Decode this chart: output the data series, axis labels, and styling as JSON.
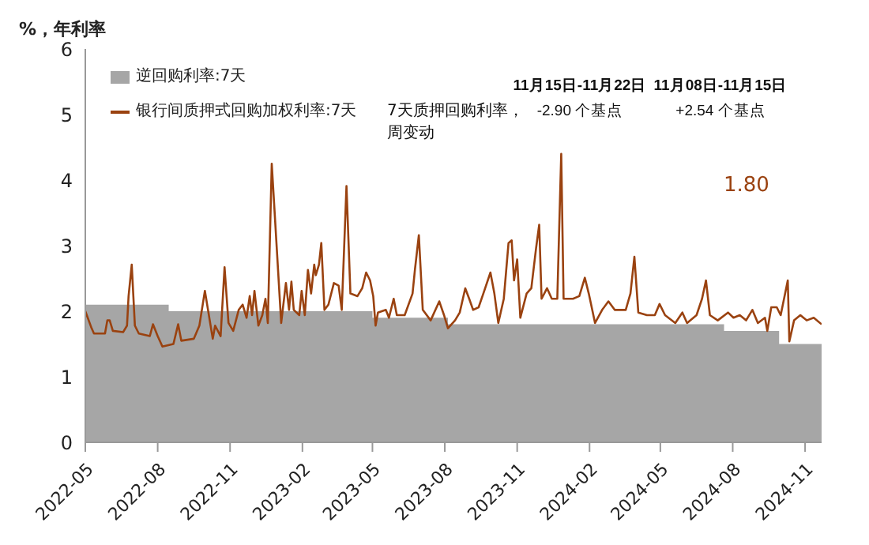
{
  "chart_data": {
    "type": "line",
    "xlim": [
      "2022-05-01",
      "2024-11-22"
    ],
    "xticks": [
      "2022-05",
      "2022-08",
      "2022-11",
      "2023-02",
      "2023-05",
      "2023-08",
      "2023-11",
      "2024-02",
      "2024-05",
      "2024-08",
      "2024-11"
    ],
    "ylim": [
      0,
      6
    ],
    "yticks": [
      0,
      1,
      2,
      3,
      4,
      5,
      6
    ],
    "grid": false,
    "legend": "top left",
    "marker": "none",
    "line_style": "solid",
    "annotations": [
      "%，年利率",
      "7天质押回购利率，周变动",
      "11月15日-11月22日",
      "-2.90 个基点",
      "11月08日-11月15日",
      "+2.54 个基点",
      "1.80"
    ],
    "series": [
      {
        "name": "逆回购利率:7天",
        "type": "area",
        "color": "#a6a6a6",
        "x": [
          "2022-05-01",
          "2022-08-15",
          "2022-08-15",
          "2023-05-01",
          "2023-05-01",
          "2023-08-05",
          "2023-08-05",
          "2024-07-21",
          "2024-07-21",
          "2024-09-29",
          "2024-09-29",
          "2024-11-22"
        ],
        "values": [
          2.1,
          2.1,
          2.0,
          2.0,
          1.9,
          1.9,
          1.8,
          1.8,
          1.7,
          1.7,
          1.5,
          1.5
        ]
      },
      {
        "name": "银行间质押式回购加权利率:7天",
        "color": "#9a4210",
        "x": [
          "2022-05-01",
          "2022-05-09",
          "2022-05-12",
          "2022-05-26",
          "2022-05-29",
          "2022-06-01",
          "2022-06-05",
          "2022-06-18",
          "2022-06-23",
          "2022-06-25",
          "2022-06-29",
          "2022-07-03",
          "2022-07-08",
          "2022-07-22",
          "2022-07-26",
          "2022-08-01",
          "2022-08-07",
          "2022-08-21",
          "2022-08-27",
          "2022-08-31",
          "2022-09-16",
          "2022-09-23",
          "2022-09-30",
          "2022-10-10",
          "2022-10-13",
          "2022-10-20",
          "2022-10-25",
          "2022-10-30",
          "2022-11-05",
          "2022-11-12",
          "2022-11-17",
          "2022-11-22",
          "2022-11-26",
          "2022-11-29",
          "2022-12-02",
          "2022-12-07",
          "2022-12-12",
          "2022-12-16",
          "2022-12-19",
          "2022-12-24",
          "2023-01-05",
          "2023-01-11",
          "2023-01-15",
          "2023-01-18",
          "2023-01-21",
          "2023-01-28",
          "2023-01-31",
          "2023-02-04",
          "2023-02-08",
          "2023-02-12",
          "2023-02-16",
          "2023-02-18",
          "2023-02-22",
          "2023-02-25",
          "2023-03-01",
          "2023-03-06",
          "2023-03-13",
          "2023-03-19",
          "2023-03-23",
          "2023-03-26",
          "2023-03-29",
          "2023-04-03",
          "2023-04-12",
          "2023-04-18",
          "2023-04-23",
          "2023-04-28",
          "2023-05-02",
          "2023-05-05",
          "2023-05-08",
          "2023-05-18",
          "2023-05-22",
          "2023-05-28",
          "2023-06-01",
          "2023-06-11",
          "2023-06-21",
          "2023-06-24",
          "2023-06-29",
          "2023-07-04",
          "2023-07-14",
          "2023-07-25",
          "2023-07-31",
          "2023-08-05",
          "2023-08-14",
          "2023-08-20",
          "2023-08-27",
          "2023-09-01",
          "2023-09-06",
          "2023-09-13",
          "2023-09-19",
          "2023-09-28",
          "2023-10-03",
          "2023-10-08",
          "2023-10-15",
          "2023-10-21",
          "2023-10-25",
          "2023-10-28",
          "2023-11-01",
          "2023-11-05",
          "2023-11-13",
          "2023-11-19",
          "2023-11-25",
          "2023-11-29",
          "2023-12-02",
          "2023-12-09",
          "2023-12-15",
          "2023-12-22",
          "2023-12-27",
          "2023-12-30",
          "2024-01-11",
          "2024-01-19",
          "2024-01-26",
          "2024-01-31",
          "2024-02-08",
          "2024-02-17",
          "2024-02-25",
          "2024-03-04",
          "2024-03-18",
          "2024-03-24",
          "2024-03-29",
          "2024-04-03",
          "2024-04-14",
          "2024-04-24",
          "2024-04-30",
          "2024-05-07",
          "2024-05-20",
          "2024-05-29",
          "2024-06-04",
          "2024-06-16",
          "2024-06-23",
          "2024-06-28",
          "2024-07-03",
          "2024-07-13",
          "2024-07-26",
          "2024-08-02",
          "2024-08-10",
          "2024-08-18",
          "2024-08-26",
          "2024-09-02",
          "2024-09-11",
          "2024-09-14",
          "2024-09-19",
          "2024-09-26",
          "2024-10-01",
          "2024-10-10",
          "2024-10-12",
          "2024-10-18",
          "2024-10-26",
          "2024-11-03",
          "2024-11-12",
          "2024-11-22"
        ],
        "values": [
          2.0,
          1.74,
          1.66,
          1.66,
          1.86,
          1.86,
          1.7,
          1.68,
          1.78,
          2.23,
          2.71,
          1.78,
          1.66,
          1.62,
          1.8,
          1.62,
          1.46,
          1.5,
          1.8,
          1.55,
          1.58,
          1.78,
          2.31,
          1.58,
          1.78,
          1.62,
          2.67,
          1.82,
          1.7,
          2.02,
          2.1,
          1.9,
          2.23,
          1.94,
          2.31,
          1.78,
          1.94,
          2.19,
          1.82,
          4.25,
          1.82,
          2.43,
          2.02,
          2.45,
          2.02,
          1.94,
          2.31,
          1.94,
          2.63,
          2.27,
          2.71,
          2.55,
          2.71,
          3.04,
          2.02,
          2.1,
          2.43,
          2.39,
          2.02,
          2.96,
          3.91,
          2.27,
          2.23,
          2.35,
          2.59,
          2.47,
          2.23,
          1.78,
          1.98,
          2.02,
          1.9,
          2.19,
          1.94,
          1.94,
          2.27,
          2.63,
          3.16,
          2.02,
          1.86,
          2.15,
          1.94,
          1.74,
          1.86,
          1.98,
          2.35,
          2.19,
          2.02,
          2.06,
          2.27,
          2.59,
          2.27,
          1.82,
          2.19,
          3.04,
          3.08,
          2.47,
          2.79,
          1.9,
          2.27,
          2.35,
          2.96,
          3.32,
          2.19,
          2.35,
          2.19,
          2.19,
          4.4,
          2.19,
          2.19,
          2.23,
          2.51,
          2.27,
          1.82,
          2.02,
          2.15,
          2.02,
          2.02,
          2.27,
          2.83,
          1.98,
          1.94,
          1.94,
          2.11,
          1.94,
          1.82,
          1.98,
          1.82,
          1.94,
          2.19,
          2.47,
          1.94,
          1.86,
          1.98,
          1.9,
          1.94,
          1.86,
          2.02,
          1.82,
          1.9,
          1.7,
          2.06,
          2.06,
          1.94,
          2.47,
          1.54,
          1.86,
          1.94,
          1.86,
          1.9,
          1.8
        ]
      }
    ]
  }
}
